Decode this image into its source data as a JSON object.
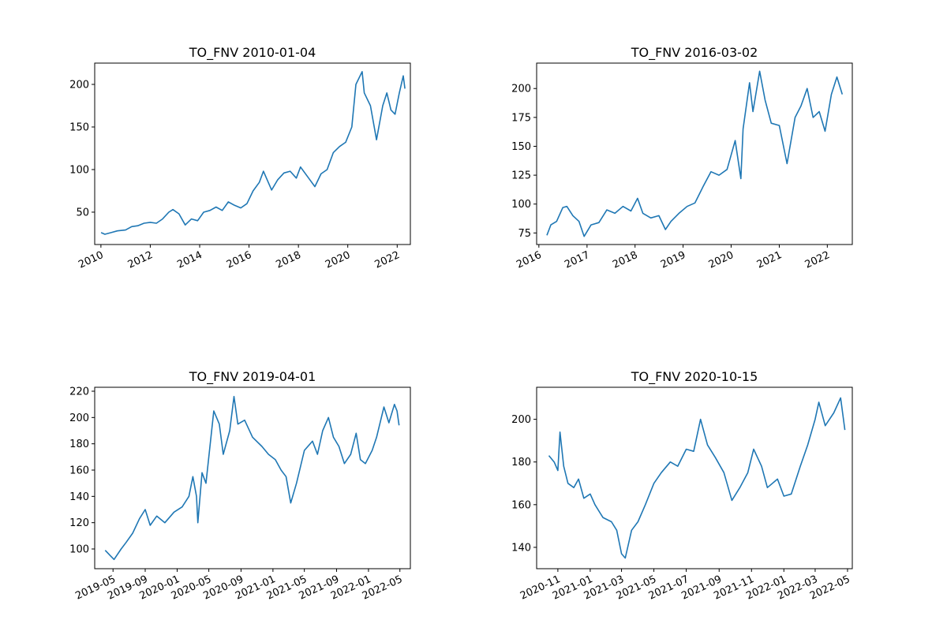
{
  "chart_data": [
    {
      "type": "line",
      "title": "TO_FNV 2010-01-04",
      "xlim": [
        "2009-10-01",
        "2022-07-15"
      ],
      "ylim": [
        12,
        225
      ],
      "yticks": [
        50,
        100,
        150,
        200
      ],
      "xticks": [
        "2010",
        "2012",
        "2014",
        "2016",
        "2018",
        "2020",
        "2022"
      ],
      "xtick_dates": [
        "2010-01-01",
        "2012-01-01",
        "2014-01-01",
        "2016-01-01",
        "2018-01-01",
        "2020-01-01",
        "2022-01-01"
      ],
      "series_color": "#1f77b4",
      "grid": false,
      "points": [
        [
          "2010-01-04",
          26
        ],
        [
          "2010-03-01",
          24
        ],
        [
          "2010-06-01",
          26
        ],
        [
          "2010-09-01",
          28
        ],
        [
          "2011-01-01",
          29
        ],
        [
          "2011-04-01",
          33
        ],
        [
          "2011-07-01",
          34
        ],
        [
          "2011-10-01",
          37
        ],
        [
          "2012-01-01",
          38
        ],
        [
          "2012-04-01",
          37
        ],
        [
          "2012-07-01",
          42
        ],
        [
          "2012-10-01",
          50
        ],
        [
          "2012-12-01",
          53
        ],
        [
          "2013-03-01",
          48
        ],
        [
          "2013-06-01",
          35
        ],
        [
          "2013-09-01",
          42
        ],
        [
          "2013-12-01",
          40
        ],
        [
          "2014-03-01",
          50
        ],
        [
          "2014-06-01",
          52
        ],
        [
          "2014-09-01",
          56
        ],
        [
          "2014-12-01",
          52
        ],
        [
          "2015-03-01",
          62
        ],
        [
          "2015-06-01",
          58
        ],
        [
          "2015-09-01",
          55
        ],
        [
          "2015-12-01",
          60
        ],
        [
          "2016-03-01",
          75
        ],
        [
          "2016-06-01",
          85
        ],
        [
          "2016-08-01",
          98
        ],
        [
          "2016-12-01",
          76
        ],
        [
          "2017-03-01",
          88
        ],
        [
          "2017-06-01",
          96
        ],
        [
          "2017-09-01",
          98
        ],
        [
          "2017-12-01",
          90
        ],
        [
          "2018-02-01",
          103
        ],
        [
          "2018-06-01",
          90
        ],
        [
          "2018-09-01",
          80
        ],
        [
          "2018-12-01",
          95
        ],
        [
          "2019-03-01",
          100
        ],
        [
          "2019-06-01",
          120
        ],
        [
          "2019-09-01",
          127
        ],
        [
          "2019-12-01",
          132
        ],
        [
          "2020-03-01",
          150
        ],
        [
          "2020-05-01",
          200
        ],
        [
          "2020-08-01",
          215
        ],
        [
          "2020-09-01",
          190
        ],
        [
          "2020-12-01",
          175
        ],
        [
          "2021-03-01",
          135
        ],
        [
          "2021-06-01",
          175
        ],
        [
          "2021-08-01",
          190
        ],
        [
          "2021-10-01",
          170
        ],
        [
          "2021-12-01",
          165
        ],
        [
          "2022-02-01",
          190
        ],
        [
          "2022-04-01",
          210
        ],
        [
          "2022-04-25",
          195
        ]
      ]
    },
    {
      "type": "line",
      "title": "TO_FNV 2016-03-02",
      "xlim": [
        "2015-12-15",
        "2022-07-10"
      ],
      "ylim": [
        65,
        222
      ],
      "yticks": [
        75,
        100,
        125,
        150,
        175,
        200
      ],
      "xticks": [
        "2016",
        "2017",
        "2018",
        "2019",
        "2020",
        "2021",
        "2022"
      ],
      "xtick_dates": [
        "2016-01-01",
        "2017-01-01",
        "2018-01-01",
        "2019-01-01",
        "2020-01-01",
        "2021-01-01",
        "2022-01-01"
      ],
      "series_color": "#1f77b4",
      "grid": false,
      "points": [
        [
          "2016-03-02",
          73
        ],
        [
          "2016-04-01",
          82
        ],
        [
          "2016-05-15",
          85
        ],
        [
          "2016-07-01",
          97
        ],
        [
          "2016-08-01",
          98
        ],
        [
          "2016-09-15",
          90
        ],
        [
          "2016-11-01",
          85
        ],
        [
          "2016-12-10",
          72
        ],
        [
          "2017-02-01",
          82
        ],
        [
          "2017-04-01",
          84
        ],
        [
          "2017-06-01",
          95
        ],
        [
          "2017-08-01",
          92
        ],
        [
          "2017-10-01",
          98
        ],
        [
          "2017-12-01",
          94
        ],
        [
          "2018-01-20",
          105
        ],
        [
          "2018-03-01",
          92
        ],
        [
          "2018-05-01",
          88
        ],
        [
          "2018-07-01",
          90
        ],
        [
          "2018-08-20",
          78
        ],
        [
          "2018-10-01",
          85
        ],
        [
          "2018-12-01",
          92
        ],
        [
          "2019-02-01",
          98
        ],
        [
          "2019-04-01",
          101
        ],
        [
          "2019-06-01",
          115
        ],
        [
          "2019-08-01",
          128
        ],
        [
          "2019-10-01",
          125
        ],
        [
          "2019-12-01",
          130
        ],
        [
          "2020-02-01",
          155
        ],
        [
          "2020-03-15",
          122
        ],
        [
          "2020-04-01",
          165
        ],
        [
          "2020-05-20",
          205
        ],
        [
          "2020-06-15",
          180
        ],
        [
          "2020-08-05",
          215
        ],
        [
          "2020-09-15",
          190
        ],
        [
          "2020-11-01",
          170
        ],
        [
          "2021-01-01",
          168
        ],
        [
          "2021-03-01",
          135
        ],
        [
          "2021-05-01",
          175
        ],
        [
          "2021-06-15",
          185
        ],
        [
          "2021-08-01",
          200
        ],
        [
          "2021-09-15",
          175
        ],
        [
          "2021-11-01",
          180
        ],
        [
          "2021-12-15",
          163
        ],
        [
          "2022-02-01",
          195
        ],
        [
          "2022-03-15",
          210
        ],
        [
          "2022-04-25",
          195
        ]
      ]
    },
    {
      "type": "line",
      "title": "TO_FNV 2019-04-01",
      "xlim": [
        "2019-02-20",
        "2022-06-10"
      ],
      "ylim": [
        85,
        223
      ],
      "yticks": [
        100,
        120,
        140,
        160,
        180,
        200,
        220
      ],
      "xticks": [
        "2019-05",
        "2019-09",
        "2020-01",
        "2020-05",
        "2020-09",
        "2021-01",
        "2021-05",
        "2021-09",
        "2022-01",
        "2022-05"
      ],
      "xtick_dates": [
        "2019-05-01",
        "2019-09-01",
        "2020-01-01",
        "2020-05-01",
        "2020-09-01",
        "2021-01-01",
        "2021-05-01",
        "2021-09-01",
        "2022-01-01",
        "2022-05-01"
      ],
      "series_color": "#1f77b4",
      "grid": false,
      "points": [
        [
          "2019-04-01",
          99
        ],
        [
          "2019-04-20",
          95
        ],
        [
          "2019-05-05",
          92
        ],
        [
          "2019-06-01",
          100
        ],
        [
          "2019-06-20",
          105
        ],
        [
          "2019-07-15",
          112
        ],
        [
          "2019-08-10",
          123
        ],
        [
          "2019-09-01",
          130
        ],
        [
          "2019-09-20",
          118
        ],
        [
          "2019-10-15",
          125
        ],
        [
          "2019-11-15",
          120
        ],
        [
          "2019-12-20",
          128
        ],
        [
          "2020-01-20",
          132
        ],
        [
          "2020-02-15",
          140
        ],
        [
          "2020-03-01",
          155
        ],
        [
          "2020-03-15",
          140
        ],
        [
          "2020-03-20",
          120
        ],
        [
          "2020-04-05",
          158
        ],
        [
          "2020-04-20",
          150
        ],
        [
          "2020-05-20",
          205
        ],
        [
          "2020-06-10",
          195
        ],
        [
          "2020-06-25",
          172
        ],
        [
          "2020-07-20",
          190
        ],
        [
          "2020-08-05",
          216
        ],
        [
          "2020-08-20",
          195
        ],
        [
          "2020-09-15",
          198
        ],
        [
          "2020-10-15",
          185
        ],
        [
          "2020-11-20",
          178
        ],
        [
          "2020-12-15",
          172
        ],
        [
          "2021-01-10",
          168
        ],
        [
          "2021-02-01",
          160
        ],
        [
          "2021-02-20",
          155
        ],
        [
          "2021-03-10",
          135
        ],
        [
          "2021-04-01",
          150
        ],
        [
          "2021-05-01",
          175
        ],
        [
          "2021-06-01",
          182
        ],
        [
          "2021-06-20",
          172
        ],
        [
          "2021-07-10",
          190
        ],
        [
          "2021-08-01",
          200
        ],
        [
          "2021-08-20",
          185
        ],
        [
          "2021-09-10",
          178
        ],
        [
          "2021-10-01",
          165
        ],
        [
          "2021-10-25",
          172
        ],
        [
          "2021-11-15",
          188
        ],
        [
          "2021-12-01",
          168
        ],
        [
          "2021-12-20",
          165
        ],
        [
          "2022-01-15",
          175
        ],
        [
          "2022-02-01",
          185
        ],
        [
          "2022-03-01",
          208
        ],
        [
          "2022-03-20",
          196
        ],
        [
          "2022-04-10",
          210
        ],
        [
          "2022-04-20",
          205
        ],
        [
          "2022-04-28",
          194
        ]
      ]
    },
    {
      "type": "line",
      "title": "TO_FNV 2020-10-15",
      "xlim": [
        "2020-09-22",
        "2022-05-10"
      ],
      "ylim": [
        130,
        215
      ],
      "yticks": [
        140,
        160,
        180,
        200
      ],
      "xticks": [
        "2020-11",
        "2021-01",
        "2021-03",
        "2021-05",
        "2021-07",
        "2021-09",
        "2021-11",
        "2022-01",
        "2022-03",
        "2022-05"
      ],
      "xtick_dates": [
        "2020-11-01",
        "2021-01-01",
        "2021-03-01",
        "2021-05-01",
        "2021-07-01",
        "2021-09-01",
        "2021-11-01",
        "2022-01-01",
        "2022-03-01",
        "2022-05-01"
      ],
      "series_color": "#1f77b4",
      "grid": false,
      "points": [
        [
          "2020-10-15",
          183
        ],
        [
          "2020-10-25",
          180
        ],
        [
          "2020-11-01",
          176
        ],
        [
          "2020-11-05",
          194
        ],
        [
          "2020-11-12",
          178
        ],
        [
          "2020-11-20",
          170
        ],
        [
          "2020-12-01",
          168
        ],
        [
          "2020-12-10",
          172
        ],
        [
          "2020-12-20",
          163
        ],
        [
          "2021-01-01",
          165
        ],
        [
          "2021-01-10",
          160
        ],
        [
          "2021-01-25",
          154
        ],
        [
          "2021-02-10",
          152
        ],
        [
          "2021-02-20",
          148
        ],
        [
          "2021-03-01",
          137
        ],
        [
          "2021-03-08",
          135
        ],
        [
          "2021-03-20",
          148
        ],
        [
          "2021-04-01",
          152
        ],
        [
          "2021-04-15",
          160
        ],
        [
          "2021-05-01",
          170
        ],
        [
          "2021-05-15",
          175
        ],
        [
          "2021-06-01",
          180
        ],
        [
          "2021-06-15",
          178
        ],
        [
          "2021-07-01",
          186
        ],
        [
          "2021-07-15",
          185
        ],
        [
          "2021-07-28",
          200
        ],
        [
          "2021-08-10",
          188
        ],
        [
          "2021-08-25",
          182
        ],
        [
          "2021-09-10",
          175
        ],
        [
          "2021-09-25",
          162
        ],
        [
          "2021-10-10",
          168
        ],
        [
          "2021-10-25",
          175
        ],
        [
          "2021-11-05",
          186
        ],
        [
          "2021-11-20",
          178
        ],
        [
          "2021-12-01",
          168
        ],
        [
          "2021-12-20",
          172
        ],
        [
          "2022-01-01",
          164
        ],
        [
          "2022-01-15",
          165
        ],
        [
          "2022-02-01",
          178
        ],
        [
          "2022-02-15",
          188
        ],
        [
          "2022-03-01",
          200
        ],
        [
          "2022-03-08",
          208
        ],
        [
          "2022-03-20",
          197
        ],
        [
          "2022-04-05",
          203
        ],
        [
          "2022-04-18",
          210
        ],
        [
          "2022-04-26",
          195
        ]
      ]
    }
  ]
}
